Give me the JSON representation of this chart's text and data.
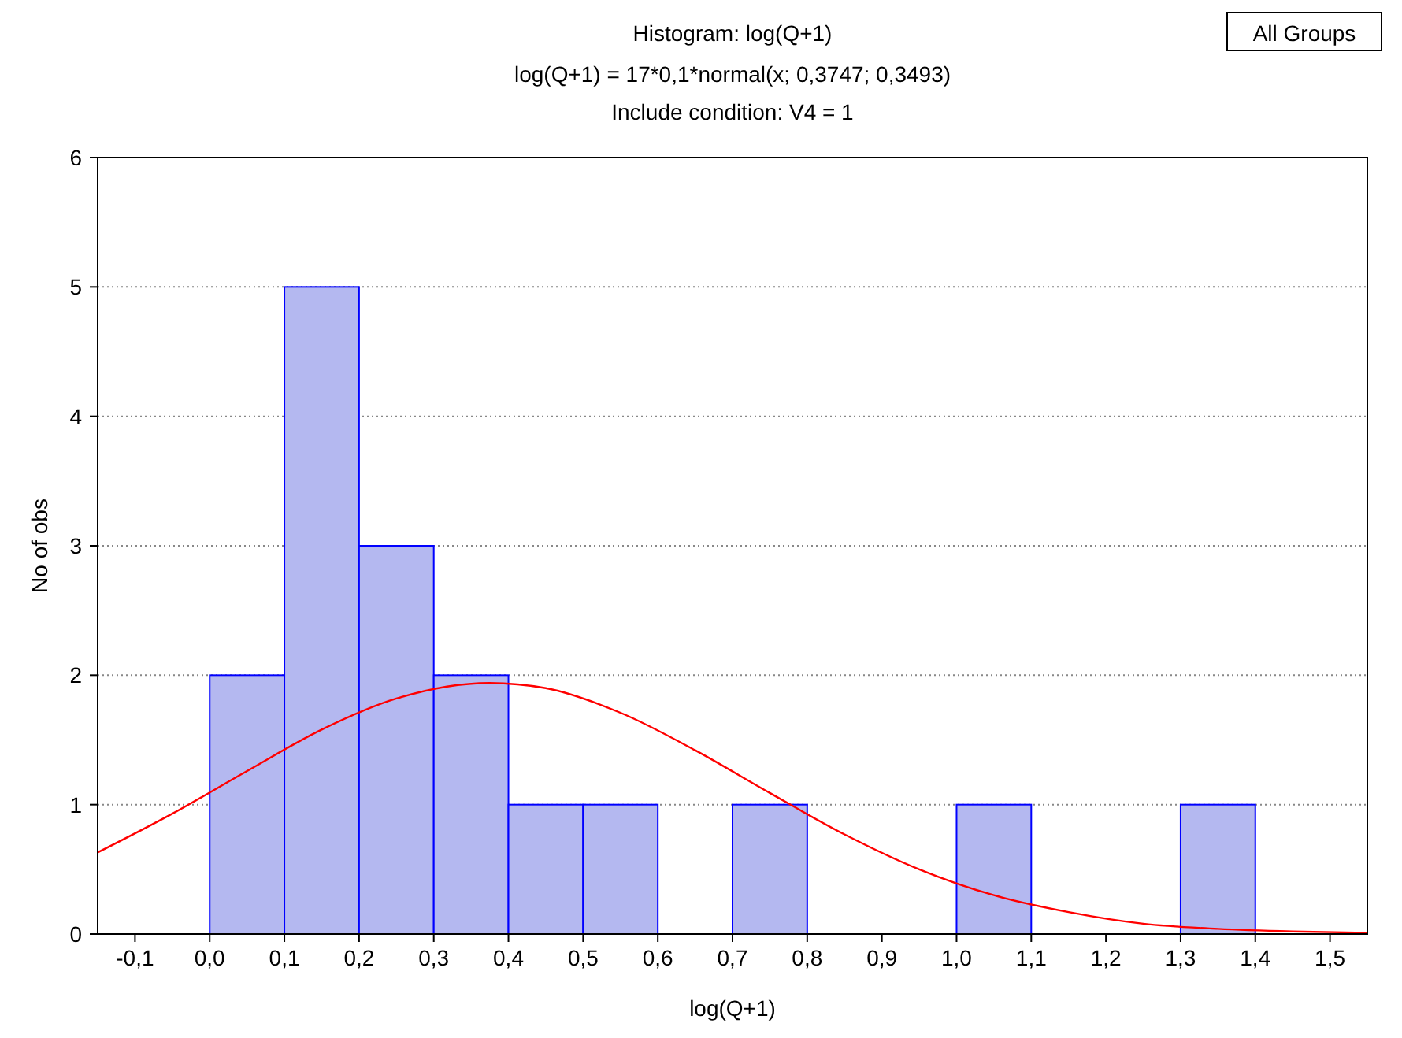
{
  "chart_data": {
    "type": "histogram",
    "title": "Histogram: log(Q+1)",
    "subtitle": "log(Q+1) = 17*0,1*normal(x; 0,3747; 0,3493)\nInclude condition: V4 = 1",
    "xlabel": "log(Q+1)",
    "ylabel": "No of obs",
    "annotations": [
      "All Groups"
    ],
    "xlim": [
      -0.15,
      1.55
    ],
    "ylim": [
      0,
      6
    ],
    "yticks": [
      0,
      1,
      2,
      3,
      4,
      5,
      6
    ],
    "xticks": [
      {
        "value": -0.1,
        "label": "-0,1"
      },
      {
        "value": 0,
        "label": "0,0"
      },
      {
        "value": 0.1,
        "label": "0,1"
      },
      {
        "value": 0.2,
        "label": "0,2"
      },
      {
        "value": 0.3,
        "label": "0,3"
      },
      {
        "value": 0.4,
        "label": "0,4"
      },
      {
        "value": 0.5,
        "label": "0,5"
      },
      {
        "value": 0.6,
        "label": "0,6"
      },
      {
        "value": 0.7,
        "label": "0,7"
      },
      {
        "value": 0.8,
        "label": "0,8"
      },
      {
        "value": 0.9,
        "label": "0,9"
      },
      {
        "value": 1.0,
        "label": "1,0"
      },
      {
        "value": 1.1,
        "label": "1,1"
      },
      {
        "value": 1.2,
        "label": "1,2"
      },
      {
        "value": 1.3,
        "label": "1,3"
      },
      {
        "value": 1.4,
        "label": "1,4"
      },
      {
        "value": 1.5,
        "label": "1,5"
      }
    ],
    "grid": "y",
    "series": [
      {
        "color": "#b4b8f0",
        "bins": [
          -0.1,
          0,
          0.1,
          0.2,
          0.3,
          0.4,
          0.5,
          0.6,
          0.7,
          0.8,
          0.9,
          1.0,
          1.1,
          1.2,
          1.3,
          1.4,
          1.5
        ],
        "values": [
          0,
          2,
          5,
          3,
          2,
          1,
          1,
          0,
          1,
          0,
          0,
          1,
          0,
          0,
          1,
          0
        ]
      },
      {
        "type": "line",
        "color": "#ff0000",
        "x": [
          -0.15,
          -0.05,
          0.05,
          0.15,
          0.25,
          0.3747,
          0.45,
          0.55,
          0.65,
          0.75,
          0.85,
          0.95,
          1.05,
          1.15,
          1.25,
          1.35,
          1.45,
          1.55
        ],
        "values": [
          0.63,
          0.93,
          1.26,
          1.58,
          1.82,
          1.94,
          1.9,
          1.71,
          1.42,
          1.09,
          0.77,
          0.5,
          0.3,
          0.17,
          0.08,
          0.04,
          0.02,
          0.01
        ]
      }
    ]
  }
}
